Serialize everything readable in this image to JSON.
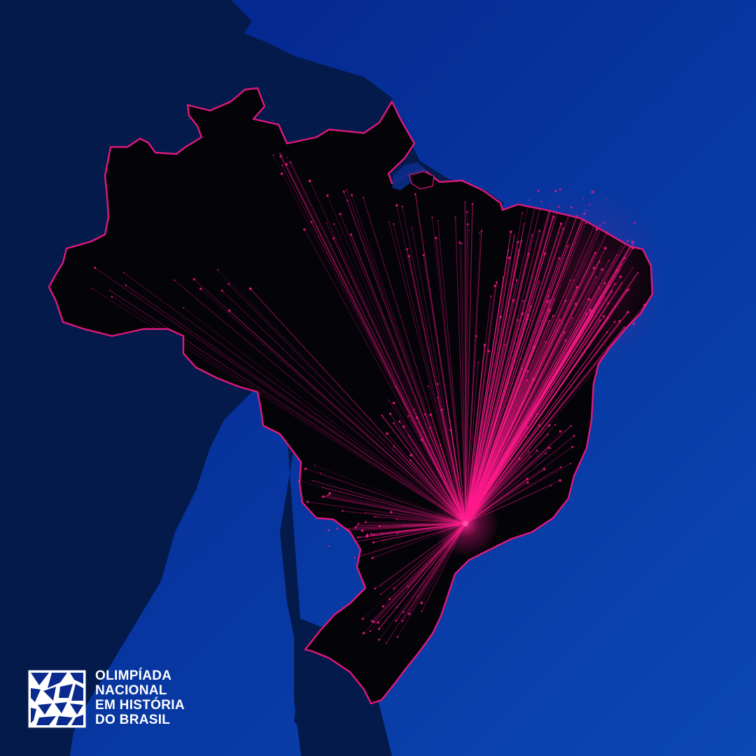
{
  "map": {
    "hub_label": "",
    "colors": {
      "ocean_light": "#0b48b4",
      "ocean_dark": "#04228a",
      "continent": "#031a4a",
      "country_fill": "#030308",
      "border": "#e0187d",
      "lines": "#ff1a8c"
    }
  },
  "branding": {
    "line1": "OLIMPÍADA",
    "line2": "NACIONAL",
    "line3": "EM HISTÓRIA",
    "line4": "DO BRASIL",
    "logo_icon": "triangulated-square-logo"
  }
}
